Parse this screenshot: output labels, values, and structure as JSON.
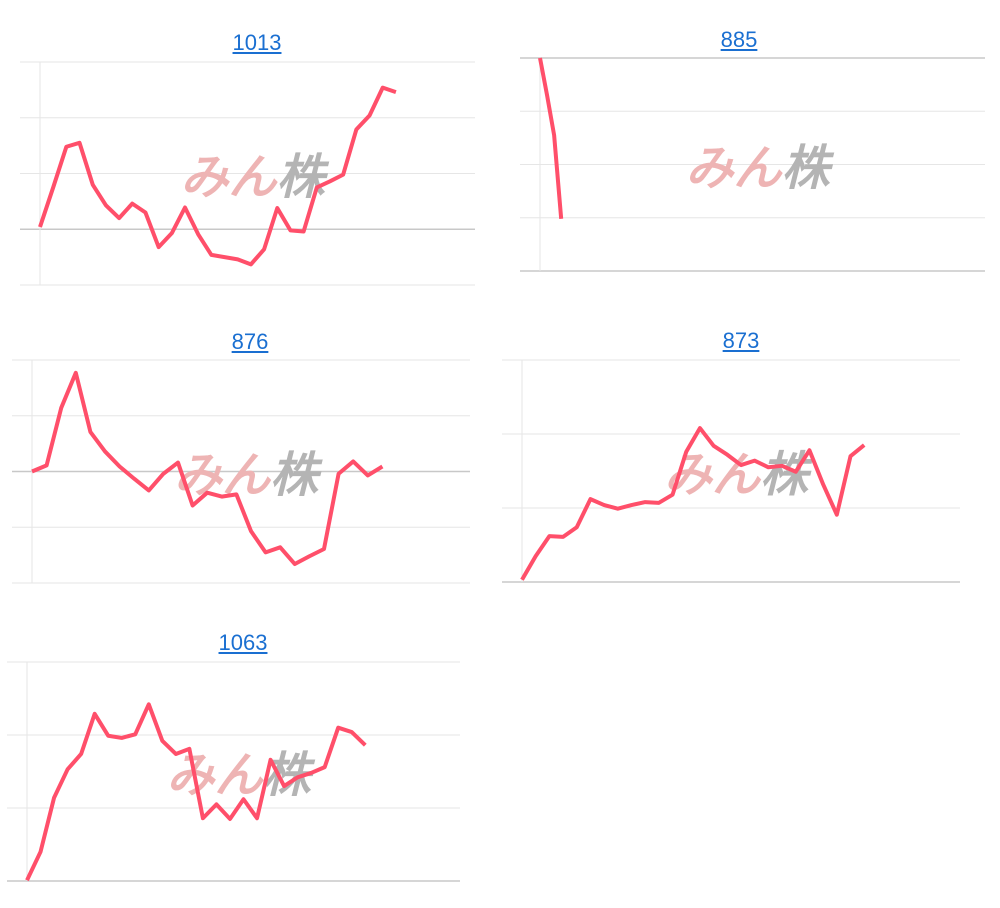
{
  "watermark": {
    "text_pink": "みん",
    "text_gray": "株"
  },
  "colors": {
    "line": "#ff4f6a",
    "grid": "#e6e6e6",
    "axis": "#c8c8c8",
    "link": "#1a6fd1",
    "watermark_pink": "#eeb4b4",
    "watermark_gray": "#b4b4b4"
  },
  "chart_data": [
    {
      "type": "line",
      "title": "1013",
      "xlim": [
        0,
        33
      ],
      "ylim": [
        -1,
        3
      ],
      "grid": true,
      "values": [
        0.04,
        0.75,
        1.48,
        1.55,
        0.8,
        0.43,
        0.2,
        0.46,
        0.3,
        -0.32,
        -0.07,
        0.39,
        -0.09,
        -0.46,
        -0.5,
        -0.54,
        -0.63,
        -0.36,
        0.38,
        -0.02,
        -0.04,
        0.75,
        0.86,
        0.98,
        1.79,
        2.04,
        2.54,
        2.46
      ]
    },
    {
      "type": "line",
      "title": "885",
      "xlim": [
        0,
        63
      ],
      "ylim": [
        0,
        4
      ],
      "grid": true,
      "values": [
        4.0,
        3.3,
        2.55,
        0.98
      ]
    },
    {
      "type": "line",
      "title": "876",
      "xlim": [
        0,
        30
      ],
      "ylim": [
        -2,
        2
      ],
      "grid": true,
      "values": [
        0,
        0.11,
        1.14,
        1.77,
        0.71,
        0.36,
        0.09,
        -0.13,
        -0.34,
        -0.04,
        0.16,
        -0.61,
        -0.38,
        -0.45,
        -0.41,
        -1.07,
        -1.45,
        -1.36,
        -1.66,
        -1.52,
        -1.39,
        -0.04,
        0.18,
        -0.07,
        0.09
      ]
    },
    {
      "type": "line",
      "title": "873",
      "xlim": [
        0,
        32
      ],
      "ylim": [
        0,
        3
      ],
      "grid": true,
      "values": [
        0.03,
        0.35,
        0.62,
        0.61,
        0.74,
        1.12,
        1.04,
        0.99,
        1.04,
        1.08,
        1.07,
        1.18,
        1.76,
        2.08,
        1.84,
        1.72,
        1.58,
        1.64,
        1.55,
        1.57,
        1.49,
        1.78,
        1.32,
        0.91,
        1.7,
        1.85
      ]
    },
    {
      "type": "line",
      "title": "1063",
      "xlim": [
        0,
        32
      ],
      "ylim": [
        0,
        3
      ],
      "grid": true,
      "values": [
        0.01,
        0.4,
        1.14,
        1.53,
        1.74,
        2.29,
        1.99,
        1.96,
        2.01,
        2.42,
        1.92,
        1.74,
        1.81,
        0.86,
        1.05,
        0.85,
        1.12,
        0.86,
        1.66,
        1.3,
        1.42,
        1.48,
        1.56,
        2.1,
        2.04,
        1.86
      ]
    }
  ]
}
